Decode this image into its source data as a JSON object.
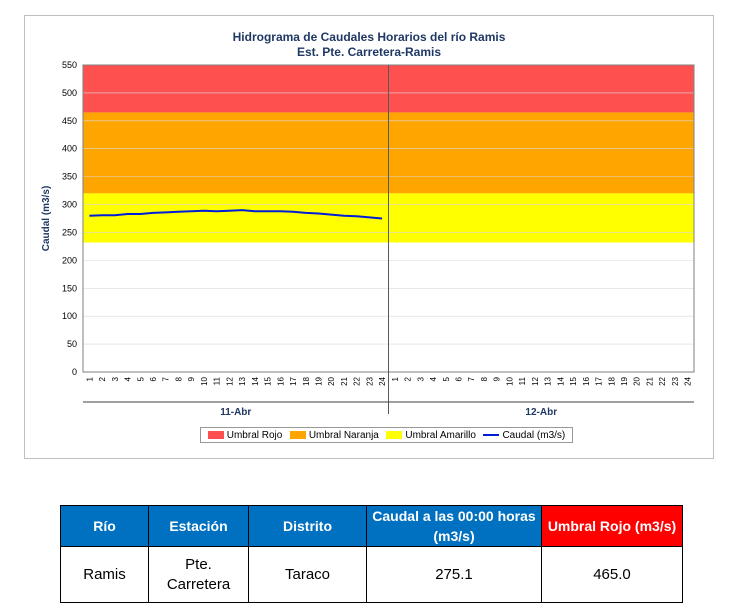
{
  "chart_data": {
    "type": "line",
    "title": "Hidrograma de Caudales Horarios del río Ramis",
    "subtitle": "Est. Pte. Carretera-Ramis",
    "ylabel": "Caudal  (m3/s)",
    "ylim": [
      0,
      550
    ],
    "yticks": [
      0,
      50,
      100,
      150,
      200,
      250,
      300,
      350,
      400,
      450,
      500,
      550
    ],
    "x_hours": [
      "1",
      "2",
      "3",
      "4",
      "5",
      "6",
      "7",
      "8",
      "9",
      "10",
      "11",
      "12",
      "13",
      "14",
      "15",
      "16",
      "17",
      "18",
      "19",
      "20",
      "21",
      "22",
      "23",
      "24"
    ],
    "days": [
      "11-Abr",
      "12-Abr"
    ],
    "thresholds": [
      {
        "name": "Umbral Rojo",
        "from": 465,
        "to": 550,
        "color": "#ff5050"
      },
      {
        "name": "Umbral Naranja",
        "from": 320,
        "to": 465,
        "color": "#ffa500"
      },
      {
        "name": "Umbral Amarillo",
        "from": 232,
        "to": 320,
        "color": "#ffff00"
      }
    ],
    "series": [
      {
        "name": "Caudal (m3/s)",
        "color": "#001ed8",
        "day_index": 0,
        "values": [
          280,
          281,
          281,
          283,
          283,
          285,
          286,
          287,
          288,
          289,
          288,
          289,
          290,
          288,
          288,
          288,
          287,
          285,
          284,
          282,
          280,
          279,
          277,
          275
        ]
      }
    ],
    "grid": true,
    "legend_position": "bottom"
  },
  "table": {
    "headers": [
      "Río",
      "Estación",
      "Distrito",
      "Caudal a las 00:00 horas (m3/s)",
      "Umbral Rojo (m3/s)"
    ],
    "row": [
      "Ramis",
      "Pte. Carretera",
      "Taraco",
      "275.1",
      "465.0"
    ]
  }
}
